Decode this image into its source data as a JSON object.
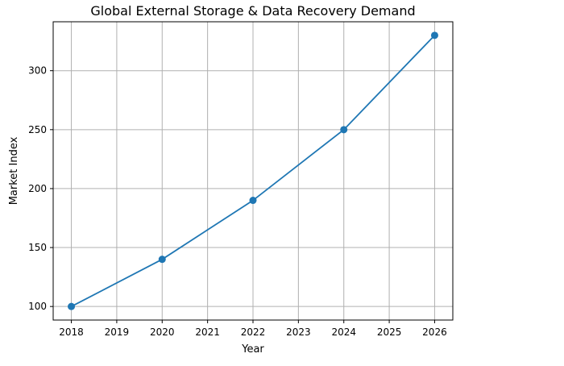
{
  "chart_data": {
    "type": "line",
    "title": "Global External Storage & Data Recovery Demand",
    "xlabel": "Year",
    "ylabel": "Market Index",
    "x": [
      2018,
      2020,
      2022,
      2024,
      2026
    ],
    "series": [
      {
        "values": [
          100,
          140,
          190,
          250,
          330
        ],
        "color": "#1f77b4",
        "marker": "circle"
      }
    ],
    "xlim": [
      2017.6,
      2026.4
    ],
    "ylim": [
      88.5,
      341.5
    ],
    "xticks": [
      2018,
      2019,
      2020,
      2021,
      2022,
      2023,
      2024,
      2025,
      2026
    ],
    "yticks": [
      100,
      150,
      200,
      250,
      300
    ],
    "grid": true
  }
}
